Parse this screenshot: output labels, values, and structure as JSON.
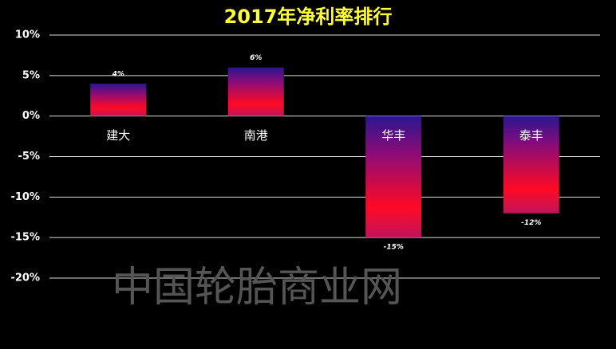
{
  "chart_data": {
    "type": "bar",
    "title": "2017年净利率排行",
    "categories": [
      "建大",
      "南港",
      "华丰",
      "泰丰"
    ],
    "values": [
      4,
      6,
      -15,
      -12
    ],
    "value_labels": [
      "4%",
      "6%",
      "-15%",
      "-12%"
    ],
    "ylim": [
      -20,
      10
    ],
    "yticks": [
      {
        "value": -20,
        "label": "-20%"
      },
      {
        "value": -15,
        "label": "-15%"
      },
      {
        "value": -10,
        "label": "-10%"
      },
      {
        "value": -5,
        "label": "-5%"
      },
      {
        "value": 0,
        "label": "0%"
      },
      {
        "value": 5,
        "label": "5%"
      },
      {
        "value": 10,
        "label": "10%"
      }
    ],
    "grid": true,
    "watermark": "中国轮胎商业网"
  }
}
